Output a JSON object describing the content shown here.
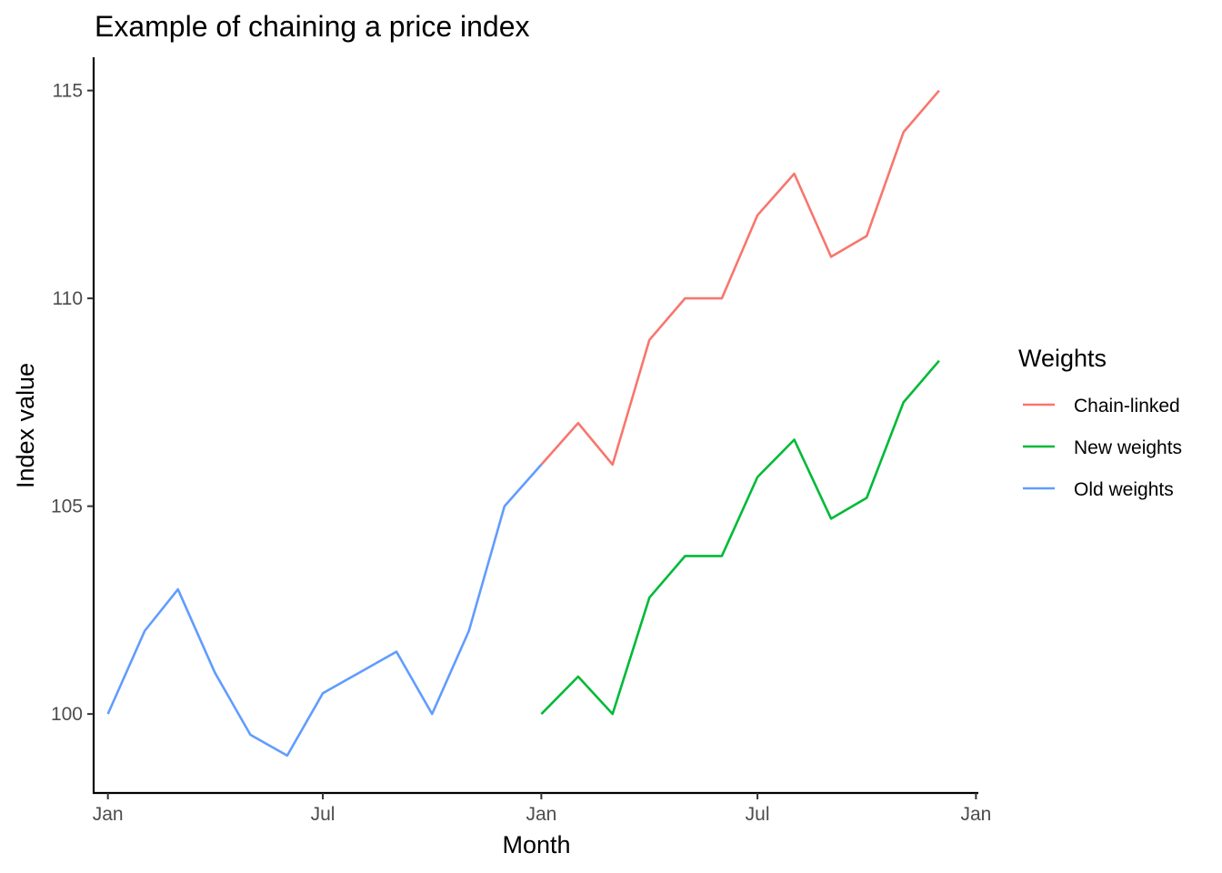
{
  "chart_data": {
    "type": "line",
    "title": "Example of chaining a price index",
    "xlabel": "Month",
    "ylabel": "Index value",
    "x": [
      "2023-01",
      "2023-02",
      "2023-03",
      "2023-04",
      "2023-05",
      "2023-06",
      "2023-07",
      "2023-08",
      "2023-09",
      "2023-10",
      "2023-11",
      "2023-12",
      "2024-01",
      "2024-02",
      "2024-03",
      "2024-04",
      "2024-05",
      "2024-06",
      "2024-07",
      "2024-08",
      "2024-09",
      "2024-10",
      "2024-11",
      "2024-12"
    ],
    "x_ticks": [
      {
        "label": "Jan",
        "value": "2023-01"
      },
      {
        "label": "Jul",
        "value": "2023-07"
      },
      {
        "label": "Jan",
        "value": "2024-01"
      },
      {
        "label": "Jul",
        "value": "2024-07"
      },
      {
        "label": "Jan",
        "value": "2025-01"
      }
    ],
    "xlim": [
      "2022-12-20",
      "2025-01-03"
    ],
    "y_ticks": [
      100,
      105,
      110,
      115
    ],
    "ylim": [
      98.1,
      115.8
    ],
    "grid": false,
    "legend": {
      "title": "Weights",
      "placement": "right"
    },
    "series": [
      {
        "name": "Chain-linked",
        "color": "#F8766D",
        "x": [
          "2024-01",
          "2024-02",
          "2024-03",
          "2024-04",
          "2024-05",
          "2024-06",
          "2024-07",
          "2024-08",
          "2024-09",
          "2024-10",
          "2024-11",
          "2024-12"
        ],
        "values": [
          106,
          107,
          106,
          109,
          110,
          110,
          112,
          113,
          111,
          111.5,
          114,
          115
        ]
      },
      {
        "name": "New weights",
        "color": "#00BA38",
        "x": [
          "2024-01",
          "2024-02",
          "2024-03",
          "2024-04",
          "2024-05",
          "2024-06",
          "2024-07",
          "2024-08",
          "2024-09",
          "2024-10",
          "2024-11",
          "2024-12"
        ],
        "values": [
          100,
          100.9,
          100,
          102.8,
          103.8,
          103.8,
          105.7,
          106.6,
          104.7,
          105.2,
          107.5,
          108.5
        ]
      },
      {
        "name": "Old weights",
        "color": "#619CFF",
        "x": [
          "2023-01",
          "2023-02",
          "2023-03",
          "2023-04",
          "2023-05",
          "2023-06",
          "2023-07",
          "2023-08",
          "2023-09",
          "2023-10",
          "2023-11",
          "2023-12",
          "2024-01"
        ],
        "values": [
          100,
          102,
          103,
          101,
          99.5,
          99,
          100.5,
          101,
          101.5,
          100,
          102,
          105,
          106
        ]
      }
    ]
  }
}
